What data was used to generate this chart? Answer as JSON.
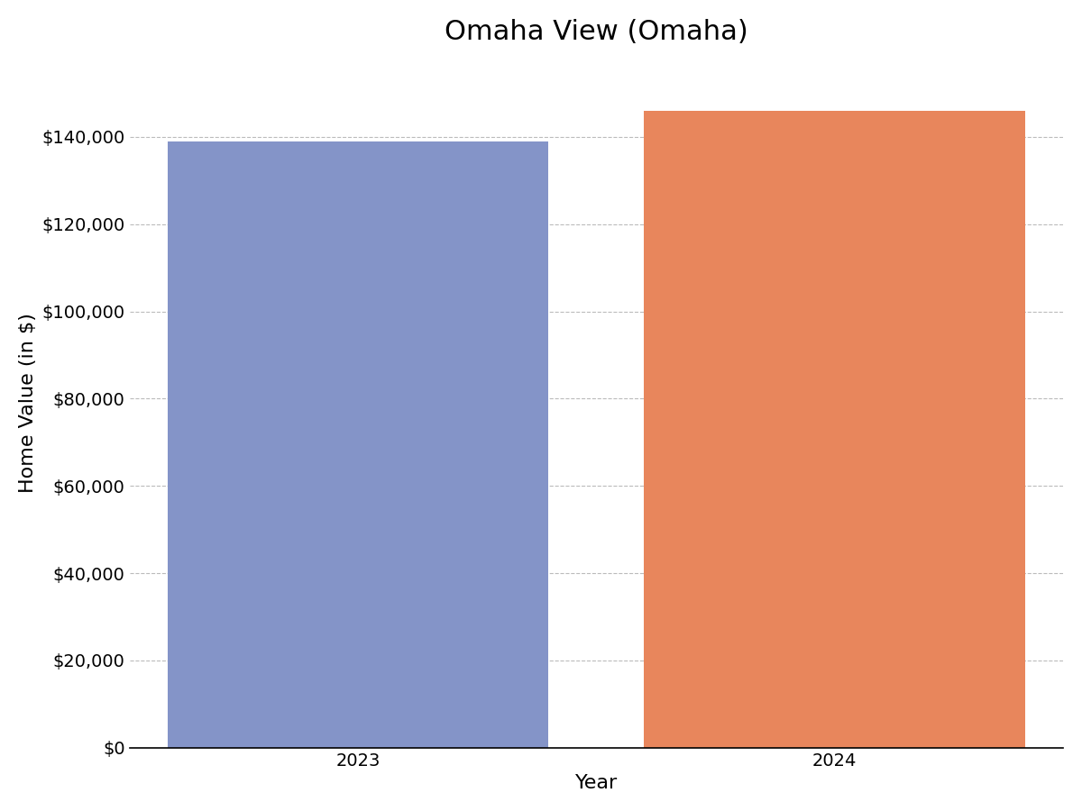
{
  "title": "Omaha View (Omaha)",
  "categories": [
    "2023",
    "2024"
  ],
  "values": [
    139000,
    146000
  ],
  "bar_colors": [
    "#8494c8",
    "#e8865c"
  ],
  "xlabel": "Year",
  "ylabel": "Home Value (in $)",
  "ylim": [
    0,
    158000
  ],
  "yticks": [
    0,
    20000,
    40000,
    60000,
    80000,
    100000,
    120000,
    140000
  ],
  "background_color": "#ffffff",
  "grid_color": "#bbbbbb",
  "title_fontsize": 22,
  "label_fontsize": 16,
  "tick_fontsize": 14,
  "bar_width": 0.8
}
